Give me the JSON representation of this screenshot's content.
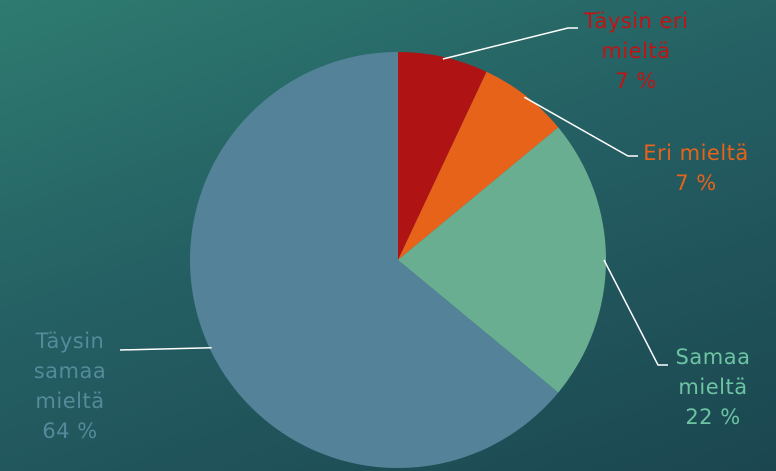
{
  "chart_data": {
    "type": "pie",
    "title": "",
    "slices": [
      {
        "label_lines": [
          "Täysin eri",
          "mieltä"
        ],
        "percent_label": "7 %",
        "value": 7,
        "color": "#b01313"
      },
      {
        "label_lines": [
          "Eri mieltä"
        ],
        "percent_label": "7 %",
        "value": 7,
        "color": "#e8631a"
      },
      {
        "label_lines": [
          "Samaa",
          "mieltä"
        ],
        "percent_label": "22 %",
        "value": 22,
        "color": "#6aae92"
      },
      {
        "label_lines": [
          "Täysin",
          "samaa",
          "mieltä"
        ],
        "percent_label": "64 %",
        "value": 64,
        "color": "#548399"
      }
    ],
    "label_colors": [
      "#c01414",
      "#e8631a",
      "#6cc4a2",
      "#548a9a"
    ],
    "leader_line_color": "#ffffff"
  }
}
